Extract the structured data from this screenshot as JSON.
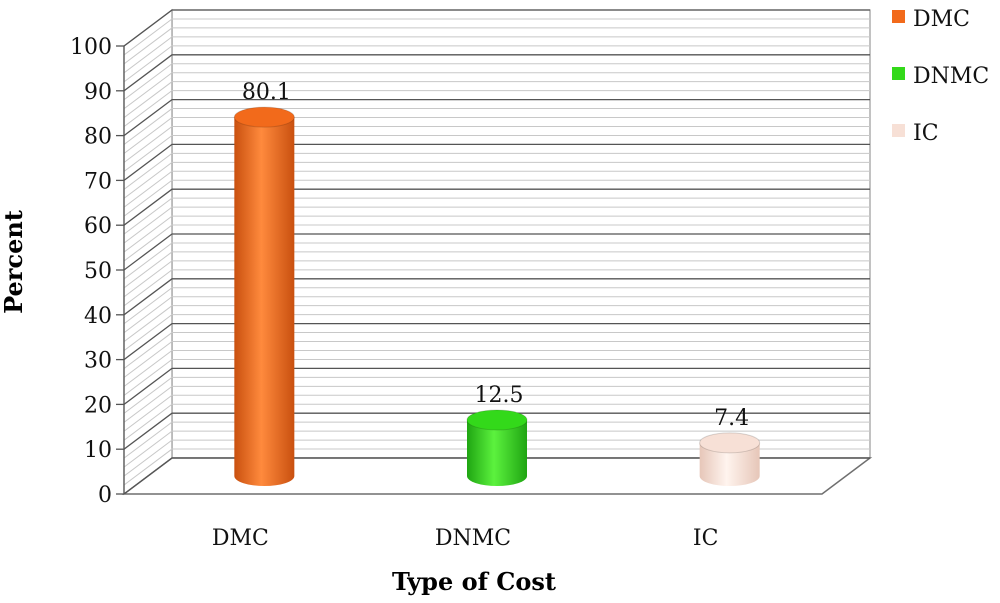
{
  "chart_data": {
    "type": "bar",
    "categories": [
      "DMC",
      "DNMC",
      "IC"
    ],
    "values": [
      80.1,
      12.5,
      7.4
    ],
    "data_labels": [
      "80.1",
      "12.5",
      "7.4"
    ],
    "xlabel": "Type of Cost",
    "ylabel": "Percent",
    "ylim": [
      0,
      100
    ],
    "yticks": [
      0,
      10,
      20,
      30,
      40,
      50,
      60,
      70,
      80,
      90,
      100
    ],
    "ytick_labels": [
      "0",
      "10",
      "20",
      "30",
      "40",
      "50",
      "60",
      "70",
      "80",
      "90",
      "100"
    ],
    "grid": true,
    "legend": {
      "placement": "top-right",
      "entries": [
        "DMC",
        "DNMC",
        "IC"
      ]
    },
    "colors": [
      "#f26a1b",
      "#33d91a",
      "#f7e0d6"
    ],
    "style": "3d-cylinder"
  }
}
